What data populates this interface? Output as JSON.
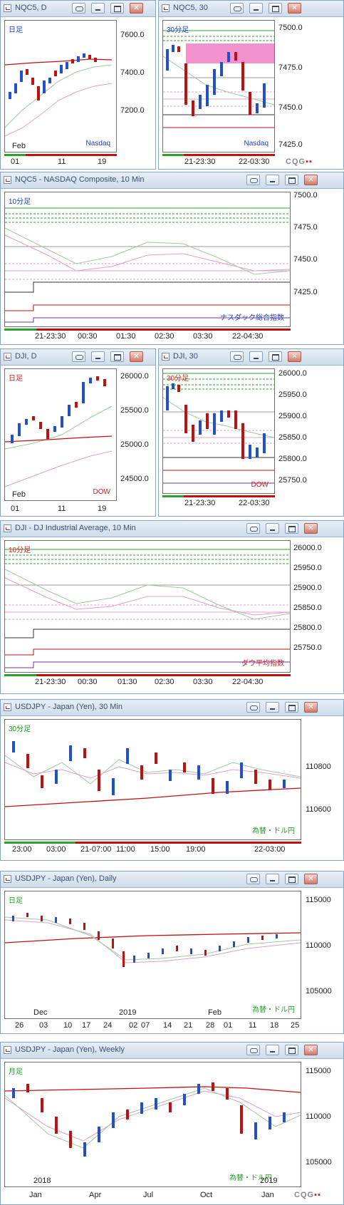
{
  "logo": "CQG",
  "colors": {
    "green": "#2ea02e",
    "red": "#c01010",
    "blue": "#2050d0",
    "pink": "#e0a0c8",
    "sma": "#c01010"
  },
  "windows": [
    {
      "id": "nqc5d",
      "title": "NQC5, D",
      "timeframe": "日足",
      "caption": "Nasdaq",
      "tfColor": "#2040c0",
      "capColor": "#2040c0",
      "yticks": [
        "7600.0",
        "7400.0",
        "7200.0"
      ],
      "xticks": [
        "Feb",
        "01",
        "11",
        "19"
      ]
    },
    {
      "id": "nqc530",
      "title": "NQC5, 30",
      "timeframe": "30分足",
      "caption": "Nasdaq",
      "tfColor": "#2040c0",
      "capColor": "#2040c0",
      "yticks": [
        "7500.0",
        "7475.0",
        "7450.0",
        "7425.0"
      ],
      "xticks": [
        "21-23:30",
        "22-03:30"
      ]
    },
    {
      "id": "nqc510",
      "title": "NQC5 - NASDAQ Composite, 10 Min",
      "timeframe": "10分足",
      "caption": "ナスダック総合指数",
      "tfColor": "#2040c0",
      "capColor": "#2040c0",
      "yticks": [
        "7500.0",
        "7475.0",
        "7450.0",
        "7425.0"
      ],
      "xticks": [
        "21-23:30",
        "00:30",
        "01:30",
        "02:30",
        "03:30",
        "22-04:30"
      ]
    },
    {
      "id": "djid",
      "title": "DJI, D",
      "timeframe": "日足",
      "caption": "DOW",
      "tfColor": "#d02020",
      "capColor": "#d02020",
      "yticks": [
        "26000.0",
        "25500.0",
        "25000.0",
        "24500.0"
      ],
      "xticks": [
        "Feb",
        "01",
        "11",
        "19"
      ]
    },
    {
      "id": "dji30",
      "title": "DJI, 30",
      "timeframe": "30分足",
      "caption": "DOW",
      "tfColor": "#d02020",
      "capColor": "#d02020",
      "yticks": [
        "26000.0",
        "25950.0",
        "25900.0",
        "25850.0",
        "25800.0",
        "25750.0"
      ],
      "xticks": [
        "21-23:30",
        "22-03:30"
      ]
    },
    {
      "id": "dji10",
      "title": "DJI - DJ Industrial Average, 10 Min",
      "timeframe": "10分足",
      "caption": "ダウ平均指数",
      "tfColor": "#d02020",
      "capColor": "#d02020",
      "yticks": [
        "26000.0",
        "25950.0",
        "25900.0",
        "25850.0",
        "25800.0",
        "25750.0"
      ],
      "xticks": [
        "21-23:30",
        "00:30",
        "01:30",
        "02:30",
        "03:30",
        "22-04:30"
      ]
    },
    {
      "id": "usdjpy30",
      "title": "USDJPY - Japan (Yen), 30 Min",
      "timeframe": "30分足",
      "caption": "為替・ドル円",
      "tfColor": "#20a020",
      "capColor": "#20a020",
      "yticks": [
        "110800",
        "110600"
      ],
      "xticks": [
        "23:00",
        "03:00",
        "21-07:00",
        "11:00",
        "15:00",
        "19:00",
        "22-03:00"
      ]
    },
    {
      "id": "usdjpyd",
      "title": "USDJPY - Japan (Yen), Daily",
      "timeframe": "日足",
      "caption": "為替・ドル円",
      "tfColor": "#20a020",
      "capColor": "#20a020",
      "yticks": [
        "115000",
        "110000",
        "105000"
      ],
      "xticks": [
        "Dec",
        "2019",
        "Feb",
        "26",
        "03",
        "10",
        "17",
        "24",
        "02",
        "07",
        "14",
        "21",
        "28",
        "01",
        "11",
        "18",
        "25"
      ]
    },
    {
      "id": "usdjpyw",
      "title": "USDJPY - Japan (Yen), Weekly",
      "timeframe": "月足",
      "caption": "為替・ドル円",
      "tfColor": "#20a020",
      "capColor": "#20a020",
      "yticks": [
        "115000",
        "110000",
        "105000"
      ],
      "xticks": [
        "2018",
        "2019",
        "Jan",
        "Apr",
        "Jul",
        "Oct",
        "Jan"
      ]
    }
  ]
}
